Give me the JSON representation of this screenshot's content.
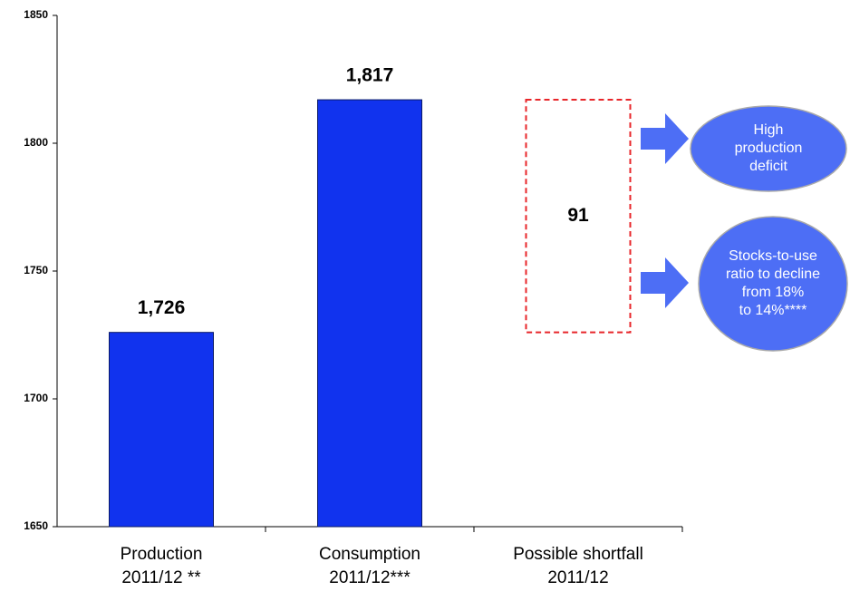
{
  "chart_data": {
    "type": "bar",
    "categories": [
      [
        "Production",
        "2011/12 **"
      ],
      [
        "Consumption",
        "2011/12***"
      ],
      [
        "Possible shortfall",
        "2011/12"
      ]
    ],
    "values": [
      1726,
      1817,
      91
    ],
    "value_labels": [
      "1,726",
      "1,817",
      "91"
    ],
    "styles": [
      "solid",
      "solid",
      "dashed"
    ],
    "color": "#1133ee",
    "dashed_color": "#e8262a",
    "ylim": [
      1650,
      1850
    ],
    "yticks": [
      1650,
      1700,
      1750,
      1800,
      1850
    ],
    "grid": false,
    "annotations": [
      {
        "lines": [
          "High",
          "production",
          "deficit"
        ]
      },
      {
        "lines": [
          "Stocks-to-use",
          "ratio to decline",
          "from 18%",
          "to 14%****"
        ]
      }
    ],
    "annotation_color": "#4d6ef5"
  }
}
